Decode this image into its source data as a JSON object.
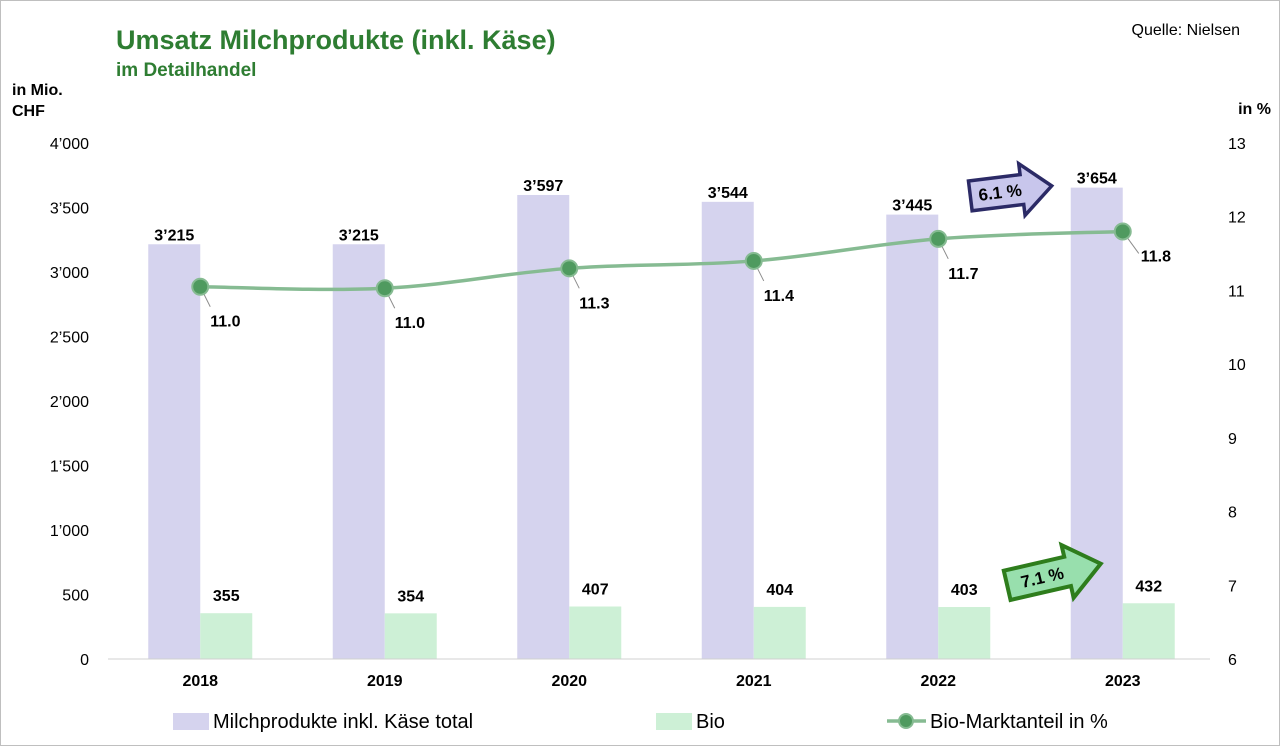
{
  "source": "Quelle: Nielsen",
  "colors": {
    "total": "#d5d3ee",
    "bio": "#cdf0d6",
    "line": "#86bb92",
    "marker": "#4f9a5f",
    "title": "#2e7d32",
    "arrow_total_fill": "#c8c6ec",
    "arrow_total_stroke": "#2b2a66",
    "arrow_bio_fill": "#98dfad",
    "arrow_bio_stroke": "#2e7d1c"
  },
  "chart_data": {
    "type": "bar",
    "title": "Umsatz Milchprodukte (inkl. Käse)",
    "subtitle": "im Detailhandel",
    "ylabel_left": [
      "in Mio.",
      "CHF"
    ],
    "ylabel_right": "in %",
    "categories": [
      "2018",
      "2019",
      "2020",
      "2021",
      "2022",
      "2023"
    ],
    "ylim": [
      0,
      4000
    ],
    "yticks": [
      0,
      500,
      1000,
      1500,
      2000,
      2500,
      3000,
      3500,
      4000
    ],
    "ytick_labels": [
      "0",
      "500",
      "1’000",
      "1’500",
      "2’000",
      "2’500",
      "3’000",
      "3’500",
      "4’000"
    ],
    "y2lim": [
      6,
      13
    ],
    "y2ticks": [
      6,
      7,
      8,
      9,
      10,
      11,
      12,
      13
    ],
    "series": [
      {
        "name": "Milchprodukte inkl. Käse total",
        "kind": "bar",
        "values": [
          3215,
          3215,
          3597,
          3544,
          3445,
          3654
        ],
        "labels": [
          "3’215",
          "3’215",
          "3’597",
          "3’544",
          "3’445",
          "3’654"
        ]
      },
      {
        "name": "Bio",
        "kind": "bar",
        "values": [
          355,
          354,
          407,
          404,
          403,
          432
        ],
        "labels": [
          "355",
          "354",
          "407",
          "404",
          "403",
          "432"
        ]
      },
      {
        "name": "Bio-Marktanteil in %",
        "kind": "line",
        "axis": "right",
        "values": [
          11.05,
          11.03,
          11.3,
          11.4,
          11.7,
          11.8
        ],
        "labels": [
          "11.0",
          "11.0",
          "11.3",
          "11.4",
          "11.7",
          "11.8"
        ]
      }
    ],
    "annotations": [
      {
        "text": "6.1 %",
        "target": "Milchprodukte inkl. Käse total"
      },
      {
        "text": "7.1 %",
        "target": "Bio"
      }
    ],
    "legend": "bottom"
  }
}
